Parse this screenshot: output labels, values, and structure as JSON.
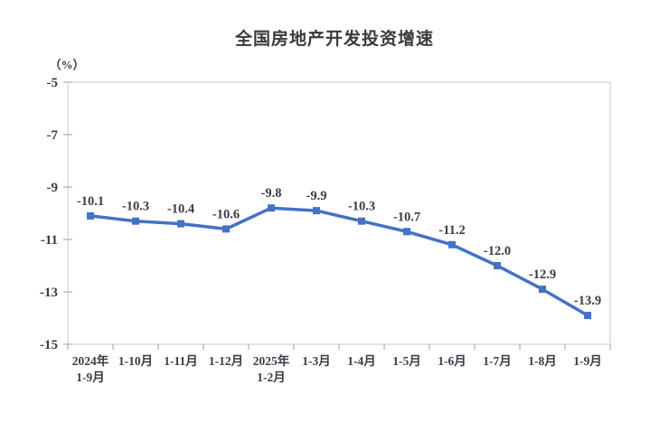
{
  "chart_data": {
    "type": "line",
    "title": "全国房地产开发投资增速",
    "unit_label": "（%）",
    "categories": [
      "2024年\n1-9月",
      "1-10月",
      "1-11月",
      "1-12月",
      "2025年\n1-2月",
      "1-3月",
      "1-4月",
      "1-5月",
      "1-6月",
      "1-7月",
      "1-8月",
      "1-9月"
    ],
    "values": [
      -10.1,
      -10.3,
      -10.4,
      -10.6,
      -9.8,
      -9.9,
      -10.3,
      -10.7,
      -11.2,
      -12.0,
      -12.9,
      -13.9
    ],
    "point_labels": [
      "-10.1",
      "-10.3",
      "-10.4",
      "-10.6",
      "-9.8",
      "-9.9",
      "-10.3",
      "-10.7",
      "-11.2",
      "-12.0",
      "-12.9",
      "-13.9"
    ],
    "ylim": [
      -15,
      -5
    ],
    "yticks": [
      "-5",
      "-7",
      "-9",
      "-11",
      "-13",
      "-15"
    ],
    "grid": false,
    "legend": "none",
    "line_color": "#4472C4",
    "marker": "square",
    "text_color": "#3b3b45",
    "axis_color": "#9e9ea4",
    "border_color": "#c9c9cd"
  }
}
